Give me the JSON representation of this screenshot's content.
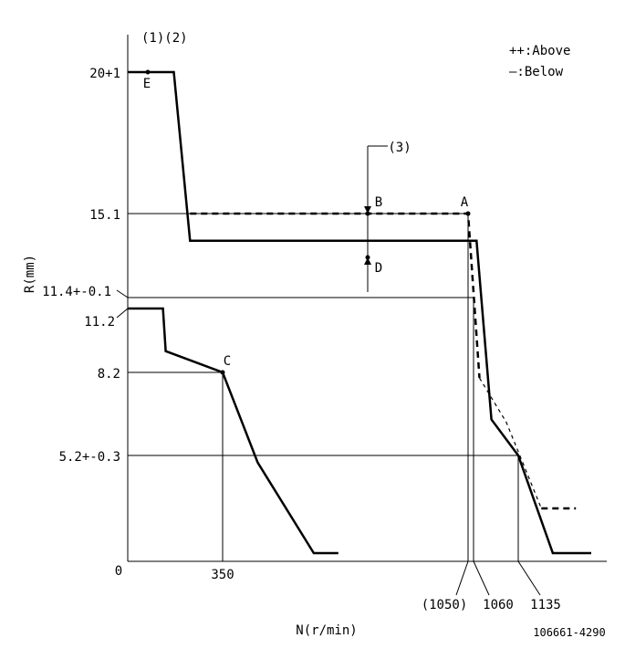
{
  "chart_data": {
    "type": "line",
    "title": "",
    "header_note": "(1)(2)",
    "xlabel": "N(r/min)",
    "ylabel": "R(mm)",
    "origin_label": "0",
    "legend": [
      {
        "symbol": "++",
        "text": ":Above",
        "style": "dashed"
      },
      {
        "symbol": "—",
        "text": ":Below",
        "style": "solid"
      }
    ],
    "y_tick_labels": [
      "20+1",
      "15.1",
      "11.4+-0.1",
      "11.2",
      "8.2",
      "5.2+-0.3"
    ],
    "x_tick_labels": [
      "350",
      "(1050)",
      "1060",
      "1135"
    ],
    "point_labels": [
      "A",
      "B",
      "C",
      "D",
      "E"
    ],
    "annotation": "(3)",
    "drawing_id": "106661-4290",
    "series": [
      {
        "style": "solid",
        "points": [
          [
            0,
            20
          ],
          [
            170,
            20
          ],
          [
            230,
            13.9
          ],
          [
            1065,
            13.9
          ],
          [
            1090,
            6.5
          ],
          [
            1135,
            5.2
          ],
          [
            1180,
            0.6
          ],
          [
            1230,
            0.6
          ]
        ]
      },
      {
        "style": "dashed",
        "points": [
          [
            230,
            15.1
          ],
          [
            1050,
            15.1
          ],
          [
            1070,
            8.0
          ],
          [
            1115,
            6.4
          ],
          [
            1165,
            2.2
          ],
          [
            1210,
            2.2
          ]
        ]
      },
      {
        "style": "solid",
        "points": [
          [
            0,
            11.2
          ],
          [
            130,
            11.2
          ],
          [
            140,
            9.2
          ],
          [
            350,
            8.2
          ],
          [
            450,
            4.8
          ],
          [
            610,
            0.6
          ],
          [
            680,
            0.6
          ]
        ]
      }
    ]
  }
}
